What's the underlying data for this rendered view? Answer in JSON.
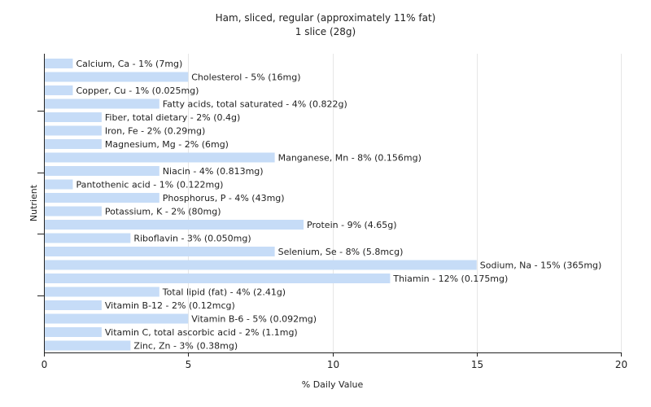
{
  "chart_data": {
    "type": "bar",
    "orientation": "horizontal",
    "title": "Ham, sliced, regular (approximately 11% fat)",
    "subtitle": "1 slice (28g)",
    "xlabel": "% Daily Value",
    "ylabel": "Nutrient",
    "xlim": [
      0,
      20
    ],
    "xticks": [
      0,
      5,
      10,
      15,
      20
    ],
    "grid": "vertical",
    "bar_color": "#c6dcf7",
    "categories": [
      "Calcium, Ca",
      "Cholesterol",
      "Copper, Cu",
      "Fatty acids, total saturated",
      "Fiber, total dietary",
      "Iron, Fe",
      "Magnesium, Mg",
      "Manganese, Mn",
      "Niacin",
      "Pantothenic acid",
      "Phosphorus, P",
      "Potassium, K",
      "Protein",
      "Riboflavin",
      "Selenium, Se",
      "Sodium, Na",
      "Thiamin",
      "Total lipid (fat)",
      "Vitamin B-12",
      "Vitamin B-6",
      "Vitamin C, total ascorbic acid",
      "Zinc, Zn"
    ],
    "values": [
      1,
      5,
      1,
      4,
      2,
      2,
      2,
      8,
      4,
      1,
      4,
      2,
      9,
      3,
      8,
      15,
      12,
      4,
      2,
      5,
      2,
      3
    ],
    "labels": [
      "Calcium, Ca - 1% (7mg)",
      "Cholesterol - 5% (16mg)",
      "Copper, Cu - 1% (0.025mg)",
      "Fatty acids, total saturated - 4% (0.822g)",
      "Fiber, total dietary - 2% (0.4g)",
      "Iron, Fe - 2% (0.29mg)",
      "Magnesium, Mg - 2% (6mg)",
      "Manganese, Mn - 8% (0.156mg)",
      "Niacin - 4% (0.813mg)",
      "Pantothenic acid - 1% (0.122mg)",
      "Phosphorus, P - 4% (43mg)",
      "Potassium, K - 2% (80mg)",
      "Protein - 9% (4.65g)",
      "Riboflavin - 3% (0.050mg)",
      "Selenium, Se - 8% (5.8mcg)",
      "Sodium, Na - 15% (365mg)",
      "Thiamin - 12% (0.175mg)",
      "Total lipid (fat) - 4% (2.41g)",
      "Vitamin B-12 - 2% (0.12mcg)",
      "Vitamin B-6 - 5% (0.092mg)",
      "Vitamin C, total ascorbic acid - 2% (1.1mg)",
      "Zinc, Zn - 3% (0.38mg)"
    ]
  }
}
